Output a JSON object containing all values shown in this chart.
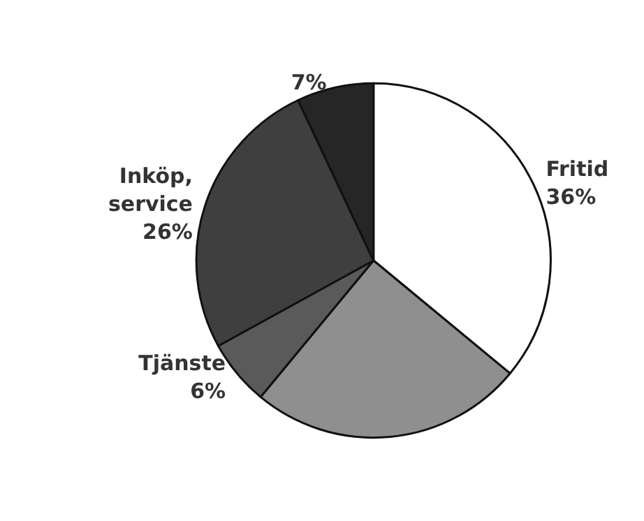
{
  "chart_data": {
    "type": "pie",
    "categories": [
      "Fritid",
      null,
      "Tjänste",
      "Inköp,\nservice",
      null
    ],
    "values": [
      36,
      25,
      6,
      26,
      7
    ],
    "value_labels": [
      "36%",
      null,
      "6%",
      "26%",
      "7%"
    ],
    "colors": [
      "#ffffff",
      "#8f8f8f",
      "#5a5a5a",
      "#3f3f3f",
      "#262626"
    ],
    "legend": false
  }
}
